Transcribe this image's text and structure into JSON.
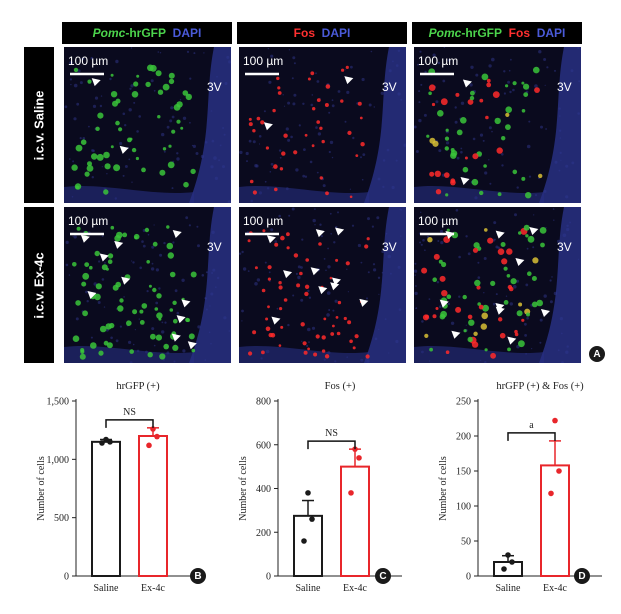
{
  "figure": {
    "headers": {
      "col1": {
        "gene": "Pomc",
        "suffix": "-hrGFP",
        "dapi": "DAPI"
      },
      "col2": {
        "fos": "Fos",
        "dapi": "DAPI"
      },
      "col3": {
        "gene": "Pomc",
        "suffix": "-hrGFP",
        "fos": "Fos",
        "dapi": "DAPI"
      }
    },
    "row_labels": [
      "i.c.v. Saline",
      "i.c.v. Ex-4c"
    ],
    "scale_bar_label": "100 µm",
    "ventricle_label": "3V",
    "panel_letters": [
      "A",
      "B",
      "C",
      "D"
    ]
  },
  "chart_data": [
    {
      "type": "bar",
      "title": "hrGFP (+)",
      "ylabel": "Number of cells",
      "categories": [
        "Saline",
        "Ex-4c"
      ],
      "values": [
        1150,
        1200
      ],
      "errors": [
        20,
        70
      ],
      "points": [
        [
          1140,
          1150,
          1170
        ],
        [
          1120,
          1195,
          1260
        ]
      ],
      "ylim": [
        0,
        1500
      ],
      "yticks": [
        0,
        500,
        1000,
        1500
      ],
      "ytick_labels": [
        "0",
        "500",
        "1,000",
        "1,500"
      ],
      "significance": "NS",
      "colors": [
        "#1a1a1a",
        "#e8262b"
      ]
    },
    {
      "type": "bar",
      "title": "Fos (+)",
      "ylabel": "Number of cells",
      "categories": [
        "Saline",
        "Ex-4c"
      ],
      "values": [
        275,
        500
      ],
      "errors": [
        70,
        80
      ],
      "points": [
        [
          160,
          260,
          380
        ],
        [
          380,
          540,
          580
        ]
      ],
      "ylim": [
        0,
        800
      ],
      "yticks": [
        0,
        200,
        400,
        600,
        800
      ],
      "ytick_labels": [
        "0",
        "200",
        "400",
        "600",
        "800"
      ],
      "significance": "NS",
      "colors": [
        "#1a1a1a",
        "#e8262b"
      ]
    },
    {
      "type": "bar",
      "title": "hrGFP (+) & Fos (+)",
      "ylabel": "Number of cells",
      "categories": [
        "Saline",
        "Ex-4c"
      ],
      "values": [
        20,
        158
      ],
      "errors": [
        9,
        35
      ],
      "points": [
        [
          10,
          20,
          30
        ],
        [
          118,
          150,
          222
        ]
      ],
      "ylim": [
        0,
        250
      ],
      "yticks": [
        0,
        50,
        100,
        150,
        200,
        250
      ],
      "ytick_labels": [
        "0",
        "50",
        "100",
        "150",
        "200",
        "250"
      ],
      "significance": "a",
      "colors": [
        "#1a1a1a",
        "#e8262b"
      ]
    }
  ]
}
